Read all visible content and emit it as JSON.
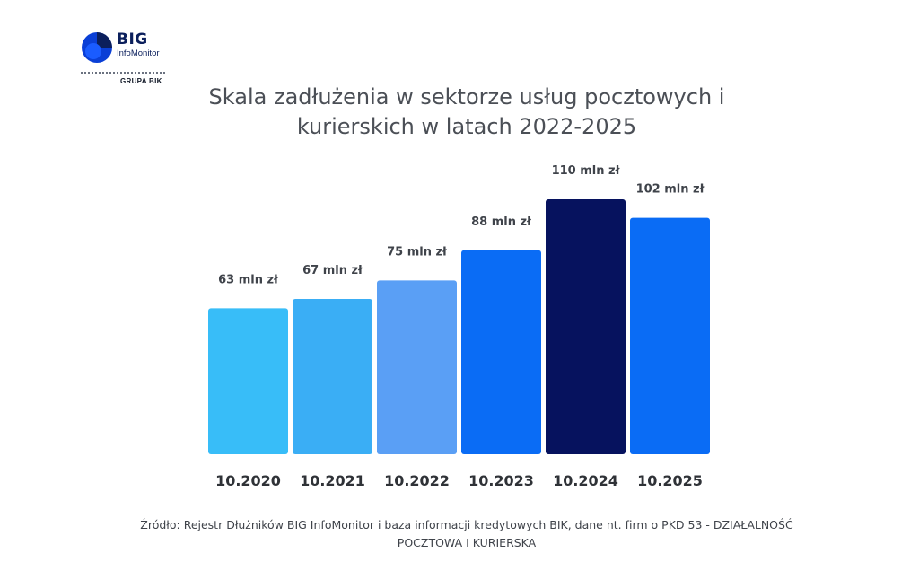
{
  "logo": {
    "brand": "BIG",
    "sub": "InfoMonitor",
    "group": "GRUPA BIK"
  },
  "chart_data": {
    "type": "bar",
    "title": "Skala zadłużenia w sektorze usług pocztowych i kurierskich w latach 2022-2025",
    "categories": [
      "10.2020",
      "10.2021",
      "10.2022",
      "10.2023",
      "10.2024",
      "10.2025"
    ],
    "values": [
      63,
      67,
      75,
      88,
      110,
      102
    ],
    "data_labels": [
      "63 mln zł",
      "67 mln zł",
      "75 mln zł",
      "88 mln zł",
      "110 mln zł",
      "102 mln zł"
    ],
    "colors": [
      "#38bdf8",
      "#3aaef5",
      "#5a9ff5",
      "#0a6cf5",
      "#06125e",
      "#0a6cf5"
    ],
    "ylim": [
      0,
      110
    ],
    "grid": false,
    "legend": "none"
  },
  "footer": {
    "line1": "Źródło: Rejestr Dłużników BIG InfoMonitor i baza informacji kredytowych BIK, dane nt. firm o PKD 53 - DZIAŁALNOŚĆ",
    "line2": "POCZTOWA I KURIERSKA"
  }
}
